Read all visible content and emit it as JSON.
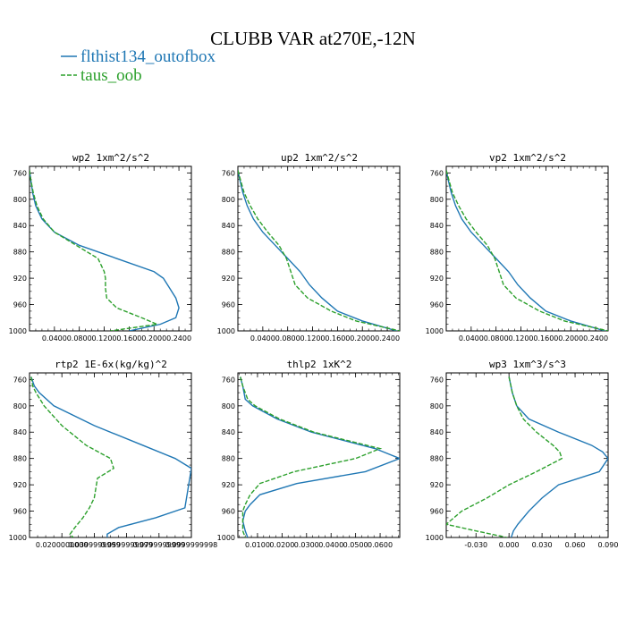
{
  "figure_title": "CLUBB VAR at270E,-12N",
  "legend": [
    {
      "label": "flthist134_outofbox",
      "color": "#1f77b4",
      "dash": "solid"
    },
    {
      "label": "taus_oob",
      "color": "#2ca02c",
      "dash": "dashed"
    }
  ],
  "chart_data": [
    {
      "type": "line",
      "title": "wp2  1xm^2/s^2",
      "ylim": [
        1000,
        750
      ],
      "xlim": [
        0,
        0.26
      ],
      "yticks": [
        760,
        800,
        840,
        880,
        920,
        960,
        1000
      ],
      "xticks": [
        0.04,
        0.08,
        0.12,
        0.16,
        0.2,
        0.24
      ],
      "xtick_labels": [
        "0.0400",
        "0.0800",
        "0.1200",
        "0.1600",
        "0.2000",
        "0.2400"
      ],
      "y": [
        756,
        770,
        790,
        810,
        830,
        850,
        870,
        890,
        910,
        920,
        935,
        950,
        965,
        980,
        990,
        1000
      ],
      "series": [
        {
          "name": "flthist134_outofbox",
          "x": [
            0,
            0.002,
            0.005,
            0.01,
            0.02,
            0.04,
            0.08,
            0.14,
            0.2,
            0.215,
            0.225,
            0.235,
            0.24,
            0.235,
            0.21,
            0.16
          ]
        },
        {
          "name": "taus_oob",
          "x": [
            0,
            0.002,
            0.006,
            0.012,
            0.022,
            0.04,
            0.075,
            0.11,
            0.12,
            0.122,
            0.122,
            0.124,
            0.14,
            0.18,
            0.205,
            0.13
          ]
        }
      ]
    },
    {
      "type": "line",
      "title": "up2  1xm^2/s^2",
      "ylim": [
        1000,
        750
      ],
      "xlim": [
        0,
        0.26
      ],
      "yticks": [
        760,
        800,
        840,
        880,
        920,
        960,
        1000
      ],
      "xticks": [
        0.04,
        0.08,
        0.12,
        0.16,
        0.2,
        0.24
      ],
      "xtick_labels": [
        "0.0400",
        "0.0800",
        "0.1200",
        "0.1600",
        "0.2000",
        "0.2400"
      ],
      "y": [
        756,
        770,
        790,
        810,
        830,
        850,
        870,
        890,
        910,
        930,
        950,
        970,
        985,
        1000
      ],
      "series": [
        {
          "name": "flthist134_outofbox",
          "x": [
            0,
            0.003,
            0.008,
            0.015,
            0.025,
            0.04,
            0.06,
            0.08,
            0.1,
            0.115,
            0.135,
            0.16,
            0.2,
            0.255
          ]
        },
        {
          "name": "taus_oob",
          "x": [
            0,
            0.004,
            0.01,
            0.02,
            0.032,
            0.048,
            0.066,
            0.078,
            0.085,
            0.092,
            0.112,
            0.15,
            0.19,
            0.26
          ]
        }
      ]
    },
    {
      "type": "line",
      "title": "vp2  1xm^2/s^2",
      "ylim": [
        1000,
        750
      ],
      "xlim": [
        0,
        0.26
      ],
      "yticks": [
        760,
        800,
        840,
        880,
        920,
        960,
        1000
      ],
      "xticks": [
        0.04,
        0.08,
        0.12,
        0.16,
        0.2,
        0.24
      ],
      "xtick_labels": [
        "0.0400",
        "0.0800",
        "0.1200",
        "0.1600",
        "0.2000",
        "0.2400"
      ],
      "y": [
        756,
        770,
        790,
        810,
        830,
        850,
        870,
        890,
        910,
        930,
        950,
        970,
        985,
        1000
      ],
      "series": [
        {
          "name": "flthist134_outofbox",
          "x": [
            0,
            0.003,
            0.008,
            0.015,
            0.025,
            0.04,
            0.06,
            0.08,
            0.1,
            0.115,
            0.135,
            0.16,
            0.2,
            0.255
          ]
        },
        {
          "name": "taus_oob",
          "x": [
            0,
            0.004,
            0.01,
            0.02,
            0.032,
            0.048,
            0.066,
            0.078,
            0.085,
            0.092,
            0.112,
            0.15,
            0.19,
            0.26
          ]
        }
      ]
    },
    {
      "type": "line",
      "title": "rtp2  1E-6x(kg/kg)^2",
      "ylim": [
        1000,
        750
      ],
      "xlim": [
        0,
        0.1
      ],
      "yticks": [
        760,
        800,
        840,
        880,
        920,
        960,
        1000
      ],
      "xticks": [
        0.02,
        0.04,
        0.06,
        0.08,
        0.1
      ],
      "xtick_labels": [
        "0.0200000000",
        "0.0399999999",
        "0.0599999999",
        "0.0799999999",
        "0.0999999998"
      ],
      "y": [
        756,
        770,
        780,
        800,
        830,
        860,
        880,
        895,
        910,
        940,
        955,
        970,
        985,
        995,
        1000
      ],
      "series": [
        {
          "name": "flthist134_outofbox",
          "x": [
            0.001,
            0.003,
            0.006,
            0.015,
            0.04,
            0.07,
            0.09,
            0.1,
            0.099,
            0.097,
            0.096,
            0.078,
            0.055,
            0.048,
            0.048
          ]
        },
        {
          "name": "taus_oob",
          "x": [
            0.001,
            0.002,
            0.004,
            0.009,
            0.02,
            0.035,
            0.05,
            0.052,
            0.042,
            0.04,
            0.037,
            0.033,
            0.028,
            0.025,
            0.027
          ]
        }
      ]
    },
    {
      "type": "line",
      "title": "thlp2  1xK^2",
      "ylim": [
        1000,
        750
      ],
      "xlim": [
        0.002,
        0.068
      ],
      "yticks": [
        760,
        800,
        840,
        880,
        920,
        960,
        1000
      ],
      "xticks": [
        0.01,
        0.02,
        0.03,
        0.04,
        0.05,
        0.06
      ],
      "xtick_labels": [
        "0.0100",
        "0.0200",
        "0.0300",
        "0.0400",
        "0.0500",
        "0.0600"
      ],
      "y": [
        756,
        770,
        790,
        800,
        820,
        840,
        865,
        880,
        900,
        918,
        935,
        950,
        960,
        975,
        990,
        1000
      ],
      "series": [
        {
          "name": "flthist134_outofbox",
          "x": [
            0.003,
            0.004,
            0.005,
            0.008,
            0.018,
            0.032,
            0.058,
            0.068,
            0.054,
            0.026,
            0.011,
            0.007,
            0.005,
            0.004,
            0.005,
            0.006
          ]
        },
        {
          "name": "taus_oob",
          "x": [
            0.003,
            0.004,
            0.006,
            0.009,
            0.019,
            0.033,
            0.06,
            0.05,
            0.025,
            0.011,
            0.007,
            0.005,
            0.004,
            0.004,
            0.004,
            0.005
          ]
        }
      ]
    },
    {
      "type": "line",
      "title": "wp3  1xm^3/s^3",
      "ylim": [
        1000,
        750
      ],
      "xlim": [
        -0.057,
        0.09
      ],
      "yticks": [
        760,
        800,
        840,
        880,
        920,
        960,
        1000
      ],
      "xticks": [
        -0.03,
        0,
        0.03,
        0.06,
        0.09
      ],
      "xtick_labels": [
        "-0.030",
        "0.000",
        "0.030",
        "0.060",
        "0.090"
      ],
      "y": [
        756,
        780,
        800,
        820,
        840,
        860,
        870,
        880,
        900,
        920,
        940,
        960,
        980,
        990,
        1000
      ],
      "series": [
        {
          "name": "flthist134_outofbox",
          "x": [
            0.0,
            0.003,
            0.007,
            0.018,
            0.045,
            0.075,
            0.085,
            0.09,
            0.082,
            0.045,
            0.03,
            0.018,
            0.008,
            0.004,
            0.002
          ]
        },
        {
          "name": "taus_oob",
          "x": [
            0.0,
            0.003,
            0.007,
            0.013,
            0.025,
            0.04,
            0.046,
            0.048,
            0.025,
            0.0,
            -0.02,
            -0.043,
            -0.057,
            -0.03,
            -0.002
          ]
        }
      ]
    }
  ]
}
